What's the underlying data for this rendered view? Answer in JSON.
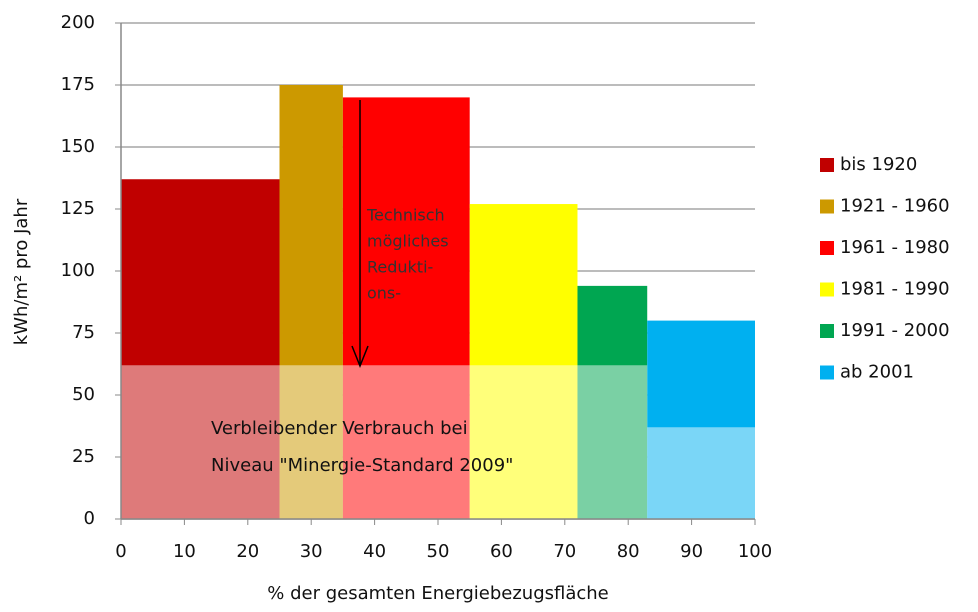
{
  "chart_data": {
    "type": "variable_width_bar",
    "categories": [
      "bis 1920",
      "1921 - 1960",
      "1961 - 1980",
      "1981 - 1990",
      "1991 - 2000",
      "ab 2001"
    ],
    "x_edges": [
      0,
      25,
      35,
      55,
      72,
      83,
      100
    ],
    "values": [
      137,
      175,
      170,
      127,
      94,
      80
    ],
    "remaining_values": [
      62,
      62,
      62,
      62,
      62,
      37
    ],
    "colors": [
      "#c00000",
      "#cc9900",
      "#ff0000",
      "#ffff00",
      "#00a651",
      "#00b0f0"
    ],
    "xlim": [
      0,
      100
    ],
    "xticks": [
      0,
      10,
      20,
      30,
      40,
      50,
      60,
      70,
      80,
      90,
      100
    ],
    "ylim": [
      0,
      200
    ],
    "yticks": [
      0,
      25,
      50,
      75,
      100,
      125,
      150,
      175,
      200
    ],
    "grid": true,
    "xlabel": "% der gesamten Energiebezugsfläche",
    "ylabel": "kWh/m² pro Jahr",
    "annotations": {
      "reduction": [
        "Technisch",
        "mögliches",
        "Redukti-",
        "ons-"
      ],
      "remaining": [
        "Verbleibender Verbrauch bei",
        "Niveau \"Minergie-Standard 2009\""
      ]
    }
  }
}
